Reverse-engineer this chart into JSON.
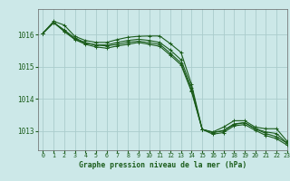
{
  "title": "Graphe pression niveau de la mer (hPa)",
  "bg_color": "#cce8e8",
  "grid_color": "#aacccc",
  "line_color": "#1a5c1a",
  "marker_color": "#1a5c1a",
  "xlim": [
    -0.5,
    23
  ],
  "ylim": [
    1012.4,
    1016.8
  ],
  "yticks": [
    1013,
    1014,
    1015,
    1016
  ],
  "xticks": [
    0,
    1,
    2,
    3,
    4,
    5,
    6,
    7,
    8,
    9,
    10,
    11,
    12,
    13,
    14,
    15,
    16,
    17,
    18,
    19,
    20,
    21,
    22,
    23
  ],
  "series": [
    [
      1016.05,
      1016.42,
      1016.3,
      1015.95,
      1015.82,
      1015.76,
      1015.76,
      1015.85,
      1015.92,
      1015.95,
      1015.96,
      1015.96,
      1015.72,
      1015.45,
      1014.45,
      1013.05,
      1012.97,
      1013.12,
      1013.32,
      1013.32,
      1013.12,
      1013.07,
      1013.07,
      1012.68
    ],
    [
      1016.05,
      1016.38,
      1016.12,
      1015.86,
      1015.74,
      1015.68,
      1015.68,
      1015.76,
      1015.82,
      1015.86,
      1015.82,
      1015.76,
      1015.52,
      1015.22,
      1014.35,
      1013.05,
      1012.95,
      1013.02,
      1013.22,
      1013.26,
      1013.07,
      1012.97,
      1012.92,
      1012.62
    ],
    [
      1016.05,
      1016.38,
      1016.15,
      1015.9,
      1015.75,
      1015.68,
      1015.65,
      1015.7,
      1015.76,
      1015.8,
      1015.75,
      1015.7,
      1015.42,
      1015.12,
      1014.26,
      1013.05,
      1012.95,
      1013.0,
      1013.2,
      1013.26,
      1013.07,
      1012.92,
      1012.82,
      1012.62
    ],
    [
      1016.05,
      1016.38,
      1016.1,
      1015.85,
      1015.7,
      1015.62,
      1015.58,
      1015.65,
      1015.7,
      1015.76,
      1015.7,
      1015.64,
      1015.36,
      1015.06,
      1014.22,
      1013.05,
      1012.9,
      1012.95,
      1013.16,
      1013.2,
      1013.02,
      1012.86,
      1012.76,
      1012.56
    ]
  ]
}
